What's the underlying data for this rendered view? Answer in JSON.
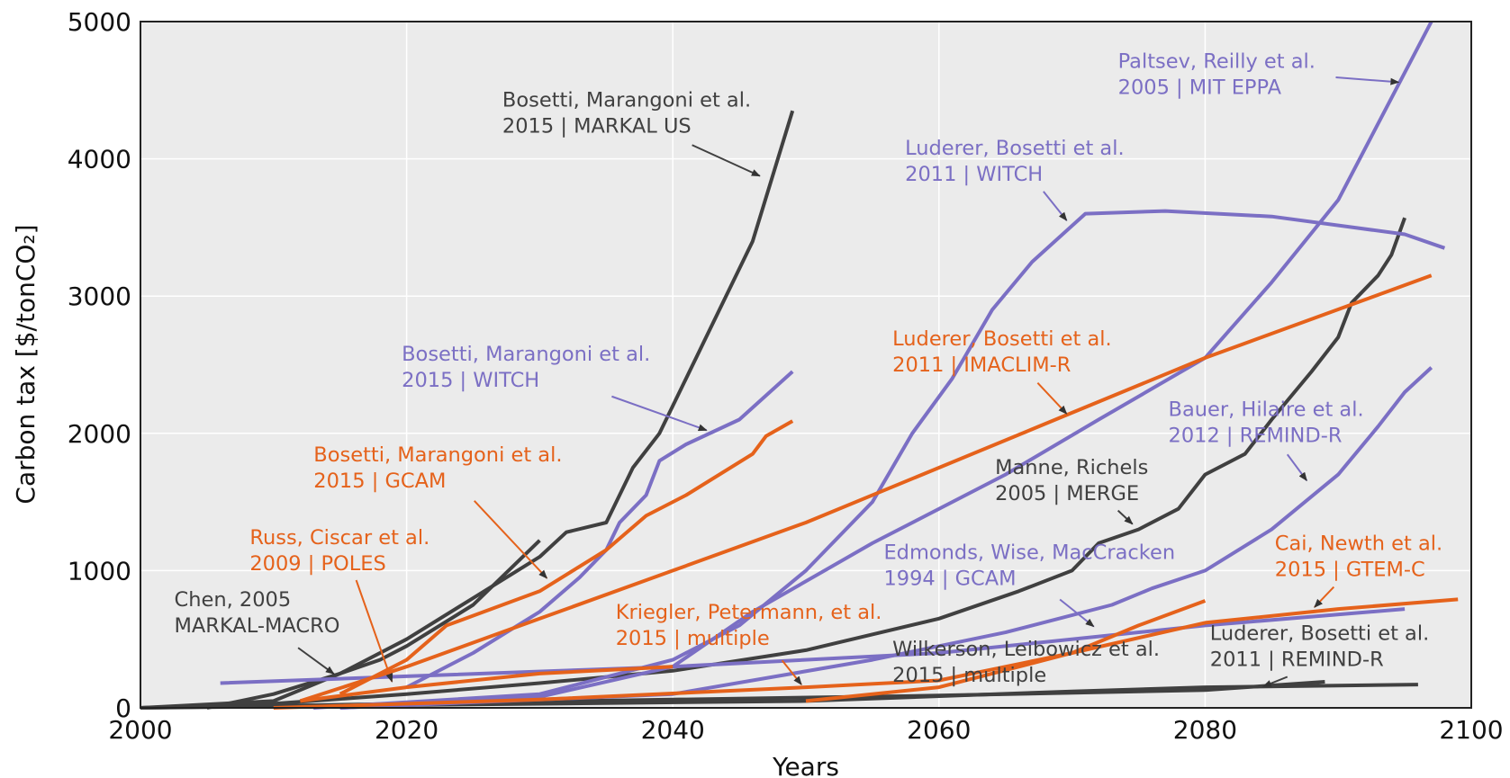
{
  "chart_data": {
    "type": "line",
    "x_label": "Years",
    "y_label": "Carbon tax [$/tonCO₂]",
    "xlim": [
      2000,
      2100
    ],
    "xticks": [
      2000,
      2020,
      2040,
      2060,
      2080,
      2100
    ],
    "ylim": [
      0,
      5000
    ],
    "yticks": [
      0,
      1000,
      2000,
      3000,
      4000,
      5000
    ],
    "grid": true,
    "series": [
      {
        "color": "#404040",
        "x": [
          2005,
          2010,
          2015,
          2020,
          2025,
          2030,
          2032,
          2035,
          2037,
          2039,
          2042,
          2046,
          2049
        ],
        "values": [
          0,
          100,
          250,
          500,
          800,
          1100,
          1280,
          1350,
          1750,
          2000,
          2600,
          3400,
          4350
        ]
      },
      {
        "color": "#404040",
        "x": [
          2000,
          2010,
          2015,
          2018,
          2020,
          2025,
          2030
        ],
        "values": [
          0,
          50,
          250,
          350,
          450,
          750,
          1220
        ]
      },
      {
        "color": "#404040",
        "x": [
          2000,
          2010,
          2020,
          2030,
          2040,
          2050,
          2060,
          2066,
          2070,
          2072,
          2075,
          2078,
          2080,
          2083,
          2085,
          2088,
          2090,
          2091,
          2093,
          2094,
          2095
        ],
        "values": [
          0,
          30,
          100,
          180,
          270,
          420,
          650,
          850,
          1000,
          1200,
          1300,
          1450,
          1700,
          1850,
          2100,
          2450,
          2700,
          2950,
          3150,
          3300,
          3570
        ]
      },
      {
        "color": "#404040",
        "x": [
          2000,
          2020,
          2040,
          2060,
          2080,
          2089
        ],
        "values": [
          0,
          30,
          60,
          90,
          130,
          190
        ]
      },
      {
        "color": "#404040",
        "x": [
          2000,
          2050,
          2070,
          2080,
          2096
        ],
        "values": [
          0,
          50,
          120,
          150,
          170
        ]
      },
      {
        "color": "#7b6fc4",
        "x": [
          2015,
          2030,
          2040,
          2046,
          2055,
          2065,
          2072,
          2080,
          2085,
          2090,
          2097
        ],
        "values": [
          0,
          80,
          300,
          700,
          1200,
          1700,
          2100,
          2550,
          3100,
          3700,
          5000
        ]
      },
      {
        "color": "#7b6fc4",
        "x": [
          2013,
          2030,
          2040,
          2045,
          2050,
          2055,
          2058,
          2061,
          2064,
          2067,
          2071,
          2077,
          2085,
          2095,
          2098
        ],
        "values": [
          0,
          100,
          350,
          600,
          1000,
          1500,
          2000,
          2400,
          2900,
          3250,
          3600,
          3620,
          3580,
          3450,
          3350
        ]
      },
      {
        "color": "#7b6fc4",
        "x": [
          2020,
          2025,
          2030,
          2033,
          2035,
          2036,
          2038,
          2039,
          2041,
          2045,
          2049
        ],
        "values": [
          150,
          400,
          700,
          950,
          1150,
          1350,
          1550,
          1800,
          1920,
          2100,
          2450
        ]
      },
      {
        "color": "#7b6fc4",
        "x": [
          2015,
          2040,
          2055,
          2065,
          2073,
          2076,
          2080,
          2085,
          2090,
          2093,
          2095,
          2097
        ],
        "values": [
          0,
          100,
          350,
          550,
          750,
          870,
          1000,
          1300,
          1700,
          2050,
          2300,
          2480
        ]
      },
      {
        "color": "#7b6fc4",
        "x": [
          2006,
          2020,
          2040,
          2060,
          2080,
          2095
        ],
        "values": [
          180,
          230,
          300,
          400,
          600,
          720
        ]
      },
      {
        "color": "#e5621b",
        "x": [
          2012,
          2020,
          2030,
          2040,
          2050,
          2060,
          2070,
          2080,
          2097
        ],
        "values": [
          50,
          300,
          650,
          1000,
          1350,
          1750,
          2150,
          2550,
          3150
        ]
      },
      {
        "color": "#e5621b",
        "x": [
          2015,
          2020,
          2023,
          2030,
          2035,
          2038,
          2041,
          2046,
          2047,
          2049
        ],
        "values": [
          100,
          350,
          600,
          850,
          1150,
          1400,
          1550,
          1850,
          1980,
          2090
        ]
      },
      {
        "color": "#e5621b",
        "x": [
          2012,
          2020,
          2030,
          2040
        ],
        "values": [
          50,
          150,
          250,
          300
        ]
      },
      {
        "color": "#e5621b",
        "x": [
          2010,
          2030,
          2050,
          2060,
          2070,
          2075,
          2080
        ],
        "values": [
          0,
          60,
          150,
          200,
          400,
          600,
          780
        ]
      },
      {
        "color": "#e5621b",
        "x": [
          2050,
          2060,
          2070,
          2080,
          2090,
          2099
        ],
        "values": [
          50,
          150,
          400,
          620,
          720,
          790
        ]
      }
    ],
    "annotations": [
      {
        "text": [
          "Bosetti, Marangoni et al.",
          "2015 | MARKAL US"
        ],
        "color": "#404040"
      },
      {
        "text": [
          "Paltsev, Reilly et al.",
          "2005 | MIT EPPA"
        ],
        "color": "#7b6fc4"
      },
      {
        "text": [
          "Luderer, Bosetti et al.",
          "2011 | WITCH"
        ],
        "color": "#7b6fc4"
      },
      {
        "text": [
          "Bosetti, Marangoni et al.",
          "2015 | WITCH"
        ],
        "color": "#7b6fc4"
      },
      {
        "text": [
          "Luderer, Bosetti et al.",
          "2011 | IMACLIM-R"
        ],
        "color": "#e5621b"
      },
      {
        "text": [
          "Bauer, Hilaire et al.",
          "2012 | REMIND-R"
        ],
        "color": "#7b6fc4"
      },
      {
        "text": [
          "Manne, Richels",
          "2005 | MERGE"
        ],
        "color": "#404040"
      },
      {
        "text": [
          "Bosetti, Marangoni et al.",
          "2015 | GCAM"
        ],
        "color": "#e5621b"
      },
      {
        "text": [
          "Russ, Ciscar et al.",
          "2009 | POLES"
        ],
        "color": "#e5621b"
      },
      {
        "text": [
          "Chen, 2005",
          "MARKAL-MACRO"
        ],
        "color": "#404040"
      },
      {
        "text": [
          "Edmonds, Wise, MacCracken",
          "1994 | GCAM"
        ],
        "color": "#7b6fc4"
      },
      {
        "text": [
          "Cai, Newth et al.",
          "2015 | GTEM-C"
        ],
        "color": "#e5621b"
      },
      {
        "text": [
          "Kriegler, Petermann, et al.",
          "2015 | multiple"
        ],
        "color": "#e5621b"
      },
      {
        "text": [
          "Wilkerson, Leibowicz et al.",
          "2015 | multiple"
        ],
        "color": "#404040"
      },
      {
        "text": [
          "Luderer, Bosetti et al.",
          "2011 | REMIND-R"
        ],
        "color": "#404040"
      }
    ]
  }
}
